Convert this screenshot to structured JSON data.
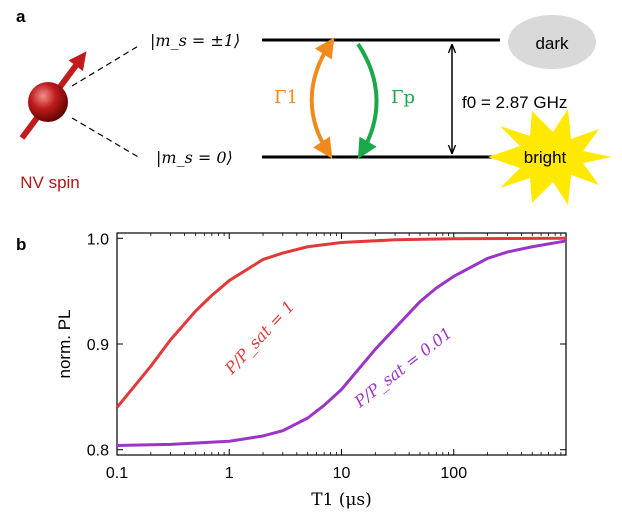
{
  "panel_a": {
    "label": "a",
    "state_upper": "|m_s = ±1⟩",
    "state_lower": "|m_s = 0⟩",
    "spin_label": "NV spin",
    "rate_up": "Γ1",
    "rate_down": "Γp",
    "freq_label": "f0 = 2.87 GHz",
    "dark_label": "dark",
    "bright_label": "bright",
    "colors": {
      "spin": "#b01818",
      "rate_up": "#f08a1c",
      "rate_down": "#1aa84a",
      "dark": "#d9d9d9",
      "bright": "#ffe900"
    }
  },
  "panel_b": {
    "label": "b",
    "chart_data": {
      "type": "line",
      "xlabel": "T1 (μs)",
      "ylabel": "norm. PL",
      "xscale": "log",
      "xlim": [
        0.1,
        1000
      ],
      "ylim": [
        0.795,
        1.005
      ],
      "xticks": [
        "0.1",
        "1",
        "10",
        "100"
      ],
      "yticks": [
        "0.8",
        "0.9",
        "1.0"
      ],
      "grid": false,
      "series": [
        {
          "name": "P/P_sat = 1",
          "color": "#e23a3a",
          "x": [
            0.1,
            0.2,
            0.3,
            0.5,
            0.7,
            1,
            2,
            3,
            5,
            10,
            30,
            100,
            1000
          ],
          "y": [
            0.84,
            0.879,
            0.904,
            0.931,
            0.946,
            0.96,
            0.98,
            0.986,
            0.992,
            0.996,
            0.9986,
            0.9996,
            1.0
          ]
        },
        {
          "name": "P/P_sat = 0.01",
          "color": "#9b35c8",
          "x": [
            0.1,
            0.3,
            1,
            2,
            3,
            5,
            7,
            10,
            20,
            30,
            50,
            70,
            100,
            200,
            300,
            500,
            1000
          ],
          "y": [
            0.804,
            0.805,
            0.808,
            0.813,
            0.818,
            0.83,
            0.842,
            0.857,
            0.895,
            0.915,
            0.94,
            0.953,
            0.964,
            0.981,
            0.987,
            0.992,
            0.9975
          ]
        }
      ]
    }
  }
}
